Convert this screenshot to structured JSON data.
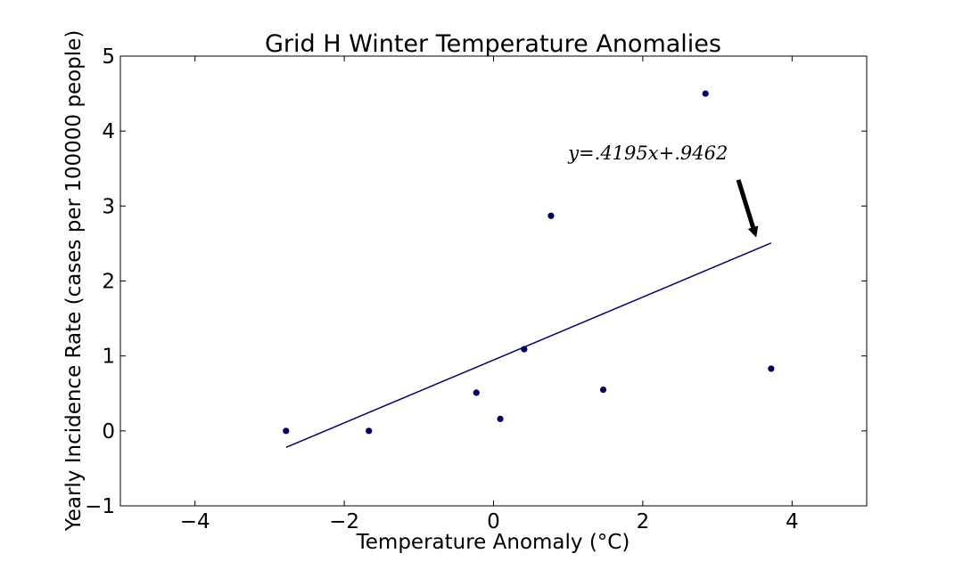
{
  "chart_data": {
    "type": "scatter",
    "title": "Grid H Winter Temperature Anomalies",
    "xlabel": "Temperature Anomaly (°C)",
    "ylabel": "Yearly Incidence Rate (cases per 100000 people)",
    "xlim": [
      -5,
      5
    ],
    "ylim": [
      -1,
      5
    ],
    "xticks": [
      -4,
      -2,
      0,
      2,
      4
    ],
    "yticks": [
      -1,
      0,
      1,
      2,
      3,
      4,
      5
    ],
    "grid": false,
    "points": [
      {
        "x": -2.78,
        "y": 0.0
      },
      {
        "x": -1.67,
        "y": 0.0
      },
      {
        "x": -0.23,
        "y": 0.51
      },
      {
        "x": 0.09,
        "y": 0.16
      },
      {
        "x": 0.41,
        "y": 1.09
      },
      {
        "x": 0.77,
        "y": 2.87
      },
      {
        "x": 1.47,
        "y": 0.55
      },
      {
        "x": 2.84,
        "y": 4.5
      },
      {
        "x": 3.72,
        "y": 0.83
      }
    ],
    "fit_line": {
      "slope": 0.4195,
      "intercept": 0.9462,
      "x_range": [
        -2.78,
        3.72
      ]
    },
    "annotation": {
      "text": "y=.4195x+.9462",
      "text_at": [
        1.0,
        3.62
      ],
      "arrow_from": [
        3.28,
        3.35
      ],
      "arrow_to": [
        3.52,
        2.58
      ]
    },
    "colors": {
      "points": "#000066",
      "line": "#000080",
      "arrow": "#000000"
    }
  }
}
